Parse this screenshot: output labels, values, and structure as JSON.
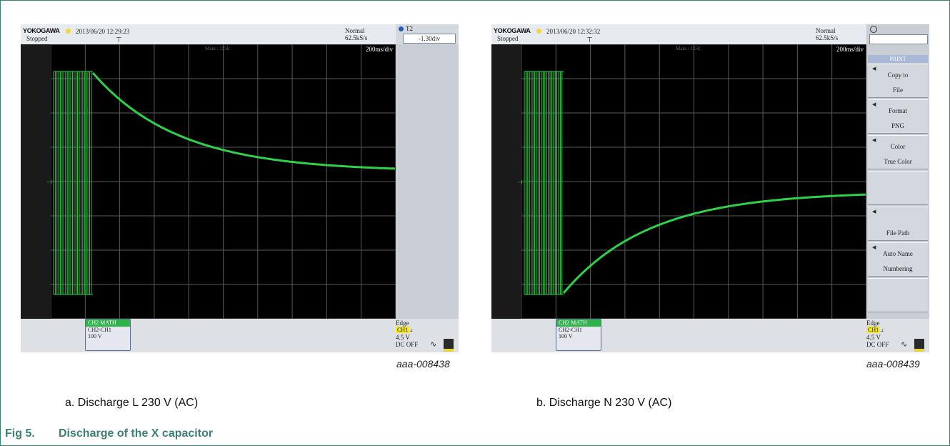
{
  "figure": {
    "number": "Fig 5.",
    "title": "Discharge of the X capacitor"
  },
  "panels": [
    {
      "brand": "YOKOGAWA",
      "datetime": "2013/06/20 12:29:23",
      "state": "Stopped",
      "acq_mode": "Normal",
      "sample_rate": "62.5kS/s",
      "time_div": "200ms/div",
      "main_label": "Main : 125k",
      "cursor_label": "T2",
      "cursor_value": "-1.30div",
      "channel_header": "CH2  MATH",
      "channel_expr": "CH2-CH1",
      "channel_scale": "100 V",
      "trigger": {
        "type": "Edge",
        "source": "CH1",
        "level": "4.5 V",
        "coupling": "DC OFF"
      },
      "code": "aaa-008438",
      "caption": "a.  Discharge L 230 V (AC)",
      "trace_color": "#2fd04a",
      "trace_direction": "decay-down"
    },
    {
      "brand": "YOKOGAWA",
      "datetime": "2013/06/20 12:32:32",
      "state": "Stopped",
      "acq_mode": "Normal",
      "sample_rate": "62.5kS/s",
      "time_div": "200ms/div",
      "main_label": "Main : 125k",
      "menu_title": "PRINT",
      "menu": [
        {
          "line1": "Copy to",
          "line2": "File"
        },
        {
          "line1": "Format",
          "line2": "PNG"
        },
        {
          "line1": "Color",
          "line2": "True Color"
        },
        {
          "line1": "",
          "line2": ""
        },
        {
          "line1": "",
          "line2": "File Path"
        },
        {
          "line1": "Auto Name",
          "line2": "Numbering"
        },
        {
          "line1": "",
          "line2": ""
        }
      ],
      "channel_header": "CH2  MATH",
      "channel_expr": "CH2-CH1",
      "channel_scale": "100 V",
      "trigger": {
        "type": "Edge",
        "source": "CH1",
        "level": "4.5 V",
        "coupling": "DC OFF"
      },
      "code": "aaa-008439",
      "caption": "b.  Discharge N 230 V (AC)",
      "trace_color": "#2fd04a",
      "trace_direction": "rise-up"
    }
  ]
}
